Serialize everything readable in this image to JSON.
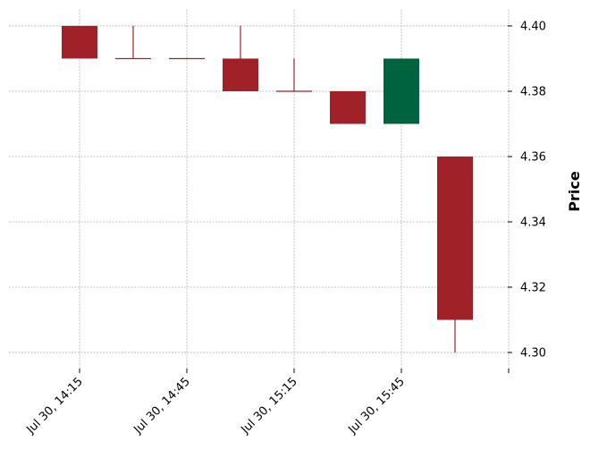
{
  "chart_data": {
    "type": "candlestick",
    "title": "",
    "xlabel": "",
    "ylabel": "Price",
    "y_axis_position": "right",
    "ylim": [
      4.295,
      4.405
    ],
    "grid": true,
    "x_tick_labels": [
      "Jul 30, 14:15",
      "Jul 30, 14:45",
      "Jul 30, 15:15",
      "Jul 30, 15:45",
      ""
    ],
    "y_ticks": [
      4.3,
      4.32,
      4.34,
      4.36,
      4.38,
      4.4
    ],
    "y_tick_labels": [
      "4.30",
      "4.32",
      "4.34",
      "4.36",
      "4.38",
      "4.40"
    ],
    "up_color": "#006340",
    "down_color": "#a02128",
    "candles": [
      {
        "open": 4.4,
        "high": 4.4,
        "low": 4.39,
        "close": 4.39
      },
      {
        "open": 4.39,
        "high": 4.4,
        "low": 4.39,
        "close": 4.39
      },
      {
        "open": 4.39,
        "high": 4.39,
        "low": 4.39,
        "close": 4.39
      },
      {
        "open": 4.39,
        "high": 4.4,
        "low": 4.38,
        "close": 4.38
      },
      {
        "open": 4.38,
        "high": 4.39,
        "low": 4.38,
        "close": 4.38
      },
      {
        "open": 4.38,
        "high": 4.38,
        "low": 4.37,
        "close": 4.37
      },
      {
        "open": 4.37,
        "high": 4.39,
        "low": 4.37,
        "close": 4.39
      },
      {
        "open": 4.36,
        "high": 4.36,
        "low": 4.3,
        "close": 4.31
      }
    ]
  }
}
